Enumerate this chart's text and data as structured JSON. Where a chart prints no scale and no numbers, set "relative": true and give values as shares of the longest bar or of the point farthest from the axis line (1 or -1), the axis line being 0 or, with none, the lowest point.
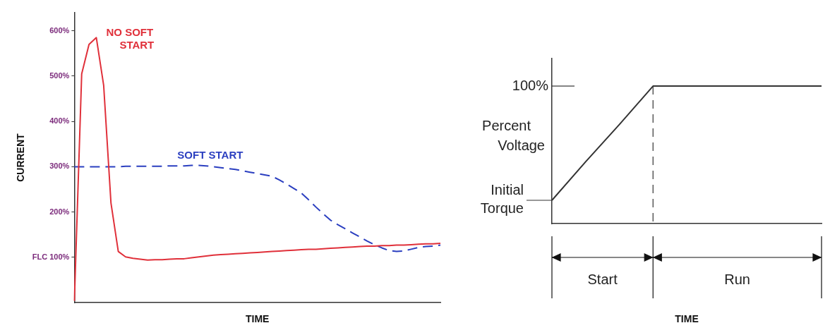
{
  "chart_data": [
    {
      "type": "line",
      "xlabel": "TIME",
      "ylabel": "CURRENT",
      "categories": [
        null,
        null,
        null,
        null,
        null,
        null,
        null,
        null,
        null,
        null,
        null,
        null,
        null,
        null,
        null,
        null,
        null,
        null,
        null,
        null,
        null,
        null,
        null,
        null,
        null,
        null,
        null,
        null,
        null,
        null,
        null,
        null,
        null,
        null,
        null,
        null,
        null,
        null,
        null,
        null,
        null,
        null,
        null,
        null,
        null,
        null,
        null,
        null,
        null,
        null,
        null
      ],
      "ylim": [
        0,
        640
      ],
      "yticks": [
        {
          "value": 100,
          "label": "FLC 100%"
        },
        {
          "value": 200,
          "label": "200%"
        },
        {
          "value": 300,
          "label": "300%"
        },
        {
          "value": 400,
          "label": "400%"
        },
        {
          "value": 500,
          "label": "500%"
        },
        {
          "value": 600,
          "label": "600%"
        }
      ],
      "tick_labels": "y",
      "grid": false,
      "legend": false,
      "marker": "none",
      "series": [
        {
          "name": "NO SOFT START",
          "color": "#e0303a",
          "line_style": "solid",
          "values": [
            4,
            505,
            570,
            585,
            480,
            220,
            113,
            101,
            98,
            96,
            94,
            95,
            95,
            96,
            97,
            97,
            99,
            101,
            103,
            105,
            106,
            107,
            108,
            109,
            110,
            111,
            112,
            113,
            114,
            115,
            116,
            117,
            118,
            118,
            119,
            120,
            121,
            122,
            123,
            124,
            125,
            125,
            126,
            126,
            127,
            127,
            128,
            129,
            130,
            130,
            131
          ]
        },
        {
          "name": "SOFT START",
          "color": "#2b3fc0",
          "line_style": "dashed",
          "values": [
            300,
            300,
            300,
            300,
            300,
            300,
            300,
            301,
            301,
            301,
            301,
            301,
            301,
            302,
            302,
            302,
            303,
            303,
            302,
            300,
            298,
            296,
            294,
            291,
            288,
            285,
            282,
            279,
            271,
            262,
            252,
            242,
            227,
            211,
            196,
            182,
            172,
            163,
            154,
            145,
            136,
            128,
            121,
            115,
            113,
            114,
            118,
            122,
            124,
            125,
            127
          ]
        }
      ]
    },
    {
      "type": "line",
      "xlabel": "TIME",
      "ylabel": "Percent Voltage",
      "relative": true,
      "categories": [
        null,
        null,
        null,
        null,
        null,
        null,
        null,
        null,
        null
      ],
      "tick_labels": false,
      "grid": false,
      "legend": false,
      "marker": "none",
      "annotations": [
        "100%",
        "Initial Torque",
        "Start",
        "Run"
      ],
      "series": [
        {
          "color": "#333333",
          "line_style": "solid",
          "values": [
            0.17,
            0.45,
            0.72,
            1,
            1,
            1,
            1,
            1,
            1
          ]
        }
      ]
    }
  ]
}
